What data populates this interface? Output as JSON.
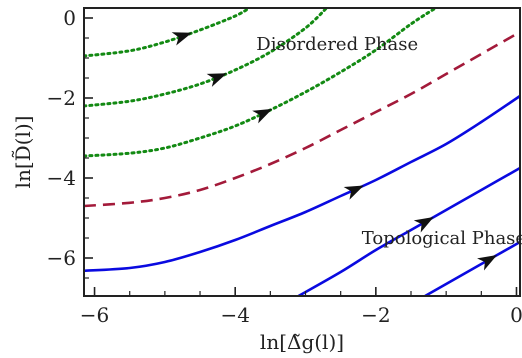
{
  "chart_data": {
    "type": "line",
    "title": "",
    "xlabel": "ln[Δ̃g(l)]",
    "ylabel": "ln[D̃(l)]",
    "xlim": [
      -6.15,
      0.05
    ],
    "ylim": [
      -6.95,
      0.25
    ],
    "xticks": [
      -6,
      -4,
      -2,
      0
    ],
    "yticks": [
      -6,
      -4,
      -2,
      0
    ],
    "xtick_labels": [
      "−6",
      "−4",
      "−2",
      "0"
    ],
    "ytick_labels": [
      "−6",
      "−4",
      "−2",
      "0"
    ],
    "grid": false,
    "legend": "none",
    "annotations": [
      {
        "text": "Disordered Phase",
        "x": -3.7,
        "y": -0.8
      },
      {
        "text": "Topological Phase",
        "x": -2.2,
        "y": -5.65
      }
    ],
    "series": [
      {
        "style": "dotted",
        "color": "#138a13",
        "x": [
          -6.15,
          -5.5,
          -5.0,
          -4.5,
          -4.0,
          -3.8
        ],
        "y": [
          -0.95,
          -0.82,
          -0.6,
          -0.3,
          0.05,
          0.25
        ],
        "arrow_at": -4.75
      },
      {
        "style": "dotted",
        "color": "#138a13",
        "x": [
          -6.15,
          -5.5,
          -5.0,
          -4.5,
          -4.0,
          -3.5,
          -3.0,
          -2.7
        ],
        "y": [
          -2.2,
          -2.08,
          -1.9,
          -1.65,
          -1.3,
          -0.85,
          -0.25,
          0.25
        ],
        "arrow_at": -4.25
      },
      {
        "style": "dotted",
        "color": "#138a13",
        "x": [
          -6.15,
          -5.5,
          -5.0,
          -4.5,
          -4.0,
          -3.5,
          -3.0,
          -2.5,
          -2.0,
          -1.5,
          -1.15
        ],
        "y": [
          -3.45,
          -3.38,
          -3.25,
          -3.0,
          -2.7,
          -2.3,
          -1.85,
          -1.35,
          -0.8,
          -0.15,
          0.25
        ],
        "arrow_at": -3.6
      },
      {
        "style": "dashed",
        "color": "#a31a3a",
        "x": [
          -6.15,
          -5.5,
          -5.0,
          -4.5,
          -4.0,
          -3.5,
          -3.0,
          -2.5,
          -2.0,
          -1.5,
          -1.0,
          -0.5,
          0.05
        ],
        "y": [
          -4.7,
          -4.62,
          -4.5,
          -4.3,
          -4.0,
          -3.65,
          -3.25,
          -2.8,
          -2.35,
          -1.9,
          -1.4,
          -0.9,
          -0.35
        ],
        "arrow_at": null
      },
      {
        "style": "solid",
        "color": "#0a0ae0",
        "x": [
          -6.15,
          -5.5,
          -5.0,
          -4.5,
          -4.0,
          -3.5,
          -3.0,
          -2.5,
          -2.0,
          -1.5,
          -1.0,
          -0.5,
          0.05
        ],
        "y": [
          -6.32,
          -6.25,
          -6.1,
          -5.85,
          -5.55,
          -5.2,
          -4.85,
          -4.45,
          -4.05,
          -3.6,
          -3.15,
          -2.6,
          -1.95
        ],
        "arrow_at": -2.3
      },
      {
        "style": "solid",
        "color": "#0a0ae0",
        "x": [
          -3.1,
          -2.5,
          -2.0,
          -1.5,
          -1.0,
          -0.5,
          0.05
        ],
        "y": [
          -6.95,
          -6.35,
          -5.8,
          -5.3,
          -4.8,
          -4.3,
          -3.75
        ],
        "arrow_at": -1.3
      },
      {
        "style": "solid",
        "color": "#0a0ae0",
        "x": [
          -1.3,
          -1.0,
          -0.5,
          0.05
        ],
        "y": [
          -6.95,
          -6.65,
          -6.15,
          -5.6
        ],
        "arrow_at": -0.4
      }
    ]
  }
}
